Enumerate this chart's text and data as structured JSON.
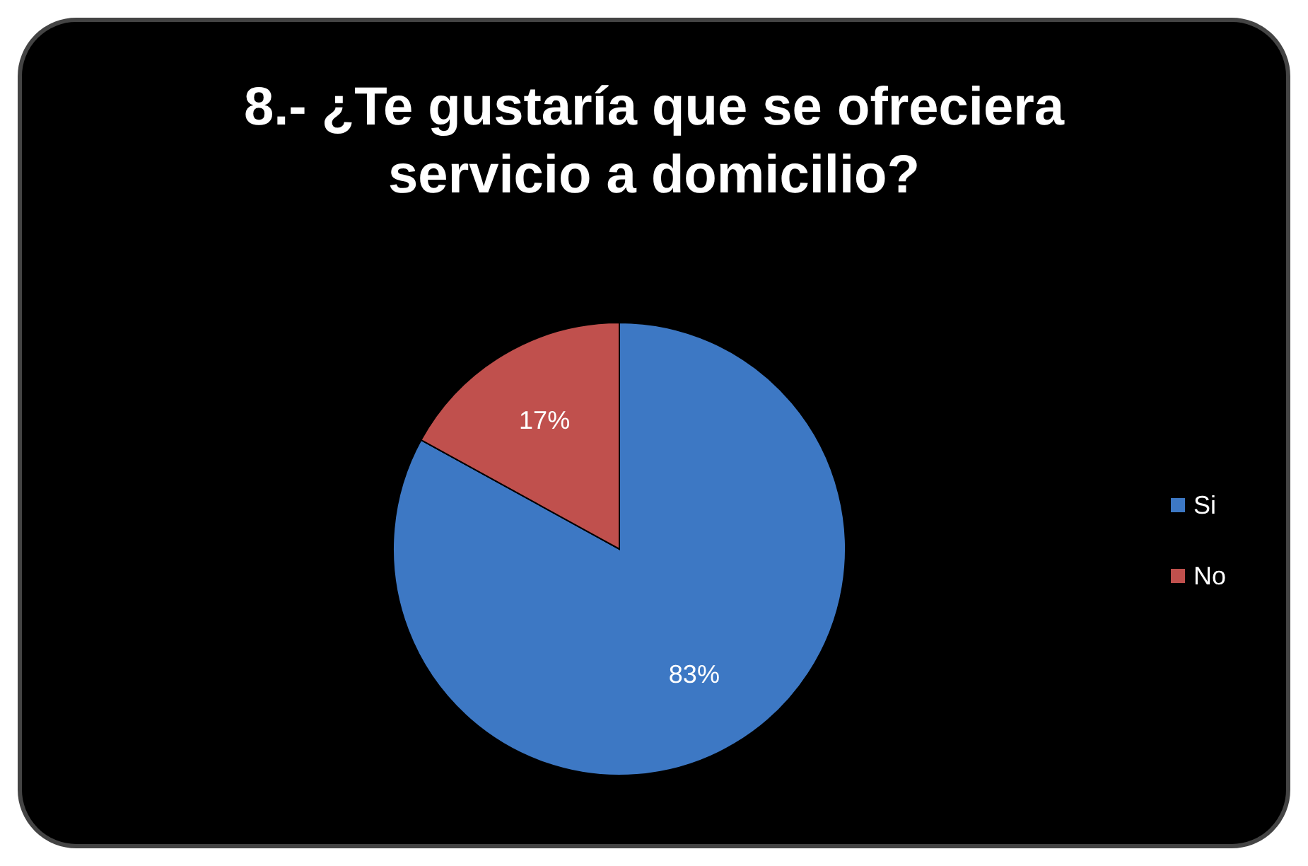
{
  "chart_data": {
    "type": "pie",
    "title": "8.- ¿Te gustaría que se ofreciera servicio a domicilio?",
    "categories": [
      "Si",
      "No"
    ],
    "values": [
      83,
      17
    ],
    "colors": [
      "#3d78c4",
      "#c0504d"
    ],
    "value_labels": [
      "83%",
      "17%"
    ],
    "legend": "right"
  }
}
